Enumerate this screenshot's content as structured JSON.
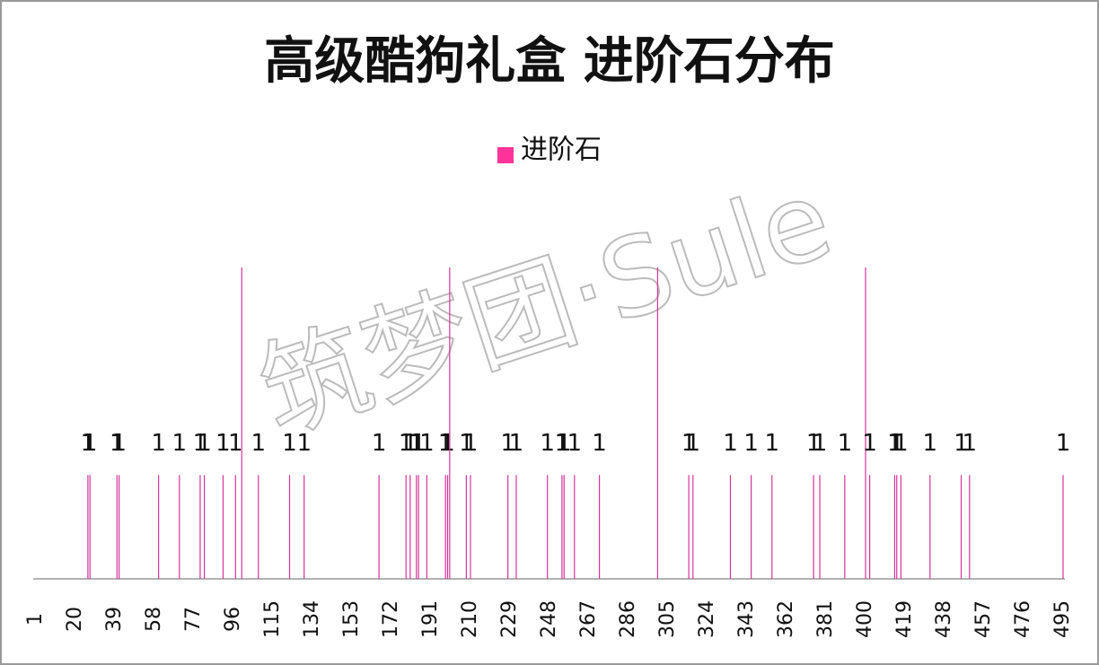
{
  "chart_data": {
    "type": "bar",
    "title": "高级酷狗礼盒  进阶石分布",
    "watermark": "筑梦团·Sule",
    "series": [
      {
        "name": "进阶石",
        "color": "#d6339c",
        "x": [
          26,
          27,
          40,
          41,
          60,
          70,
          80,
          82,
          91,
          97,
          100,
          108,
          123,
          130,
          166,
          179,
          181,
          184,
          185,
          189,
          198,
          199,
          200,
          208,
          210,
          228,
          232,
          247,
          254,
          255,
          260,
          272,
          300,
          315,
          317,
          335,
          345,
          355,
          375,
          378,
          390,
          400,
          402,
          414,
          415,
          417,
          431,
          446,
          450,
          495
        ],
        "values": [
          1,
          1,
          1,
          1,
          1,
          1,
          1,
          1,
          1,
          1,
          3,
          1,
          1,
          1,
          1,
          1,
          1,
          1,
          1,
          1,
          1,
          1,
          3,
          1,
          1,
          1,
          1,
          1,
          1,
          1,
          1,
          1,
          3,
          1,
          1,
          1,
          1,
          1,
          1,
          1,
          1,
          3,
          1,
          1,
          1,
          1,
          1,
          1,
          1,
          1
        ],
        "value_labels": [
          "1",
          "1",
          "1",
          "1",
          "1",
          "1",
          "1",
          "1",
          "1",
          "1",
          null,
          "1",
          "1",
          "1",
          "1",
          "1",
          "1",
          "1",
          "1",
          "1",
          "1",
          "1",
          null,
          "1",
          "1",
          "1",
          "1",
          "1",
          "1",
          "1",
          "1",
          "1",
          null,
          "1",
          "1",
          "1",
          "1",
          "1",
          "1",
          "1",
          "1",
          null,
          "1",
          "1",
          "1",
          "1",
          "1",
          "1",
          "1",
          "1"
        ]
      }
    ],
    "xlim": [
      1,
      495
    ],
    "xticks": [
      1,
      20,
      39,
      58,
      77,
      96,
      115,
      134,
      153,
      172,
      191,
      210,
      229,
      248,
      267,
      286,
      305,
      324,
      343,
      362,
      381,
      400,
      419,
      438,
      457,
      476,
      495
    ],
    "ylim": [
      0,
      3
    ],
    "legend": "top"
  }
}
